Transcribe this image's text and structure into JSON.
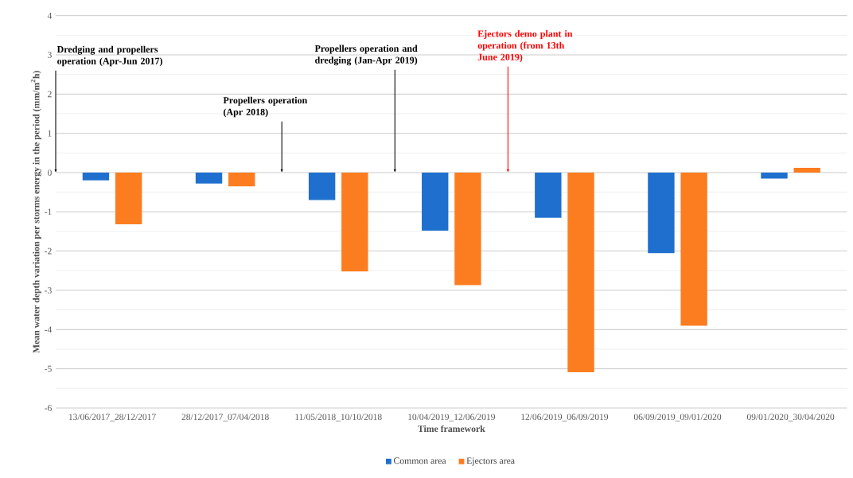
{
  "chart_data": {
    "type": "bar",
    "xlabel": "Time framework",
    "ylabel": "Mean water depth variation per storms energy in the period (mm/m$^{2}$h)",
    "categories": [
      "13/06/2017_28/12/2017",
      "28/12/2017_07/04/2018",
      "11/05/2018_10/10/2018",
      "10/04/2019_12/06/2019",
      "12/06/2019_06/09/2019",
      "06/09/2019_09/01/2020",
      "09/01/2020_30/04/2020"
    ],
    "series": [
      {
        "name": "Common area",
        "color": "#1f6fcf",
        "values": [
          -0.2,
          -0.28,
          -0.7,
          -1.48,
          -1.15,
          -2.05,
          -0.15
        ]
      },
      {
        "name": "Ejectors area",
        "color": "#fb7d20",
        "values": [
          -1.32,
          -0.35,
          -2.52,
          -2.87,
          -5.09,
          -3.9,
          0.12
        ]
      }
    ],
    "ylim": [
      -6,
      4
    ],
    "yticks": [
      -6,
      -5,
      -4,
      -3,
      -2,
      -1,
      0,
      1,
      2,
      3,
      4
    ],
    "grid": "y",
    "legend": "bottom",
    "annotations": [
      "Dredging and propellers operation (Apr-Jun 2017)",
      "Propellers operation (Apr 2018)",
      "Propellers operation and dredging (Jan-Apr 2019)",
      "Ejectors demo plant in operation (from 13th June 2019)"
    ]
  }
}
